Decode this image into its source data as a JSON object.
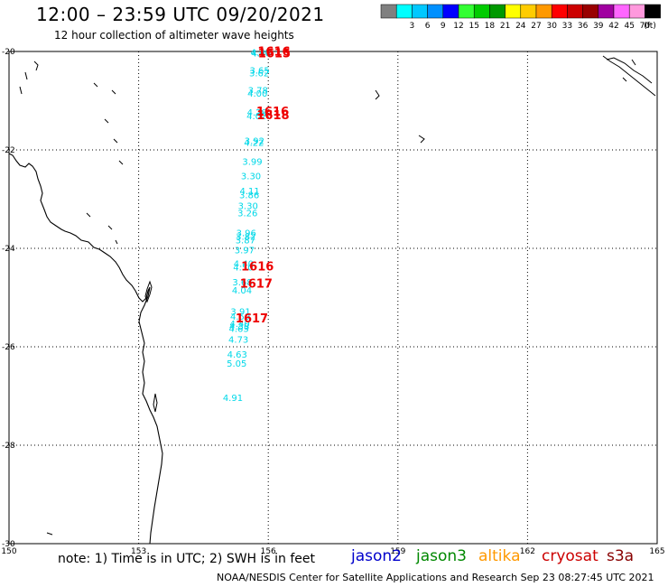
{
  "title": "12:00 – 23:59 UTC 09/20/2021",
  "subtitle": "12 hour collection of altimeter wave heights",
  "scale": {
    "unit": "(ft)",
    "bins": [
      {
        "color": "#808080",
        "label": ""
      },
      {
        "color": "#00ffff",
        "label": "3"
      },
      {
        "color": "#00c8ff",
        "label": "6"
      },
      {
        "color": "#0090ff",
        "label": "9"
      },
      {
        "color": "#0000ff",
        "label": "12"
      },
      {
        "color": "#33ff33",
        "label": "15"
      },
      {
        "color": "#00cc00",
        "label": "18"
      },
      {
        "color": "#009900",
        "label": "21"
      },
      {
        "color": "#ffff00",
        "label": "24"
      },
      {
        "color": "#ffcc00",
        "label": "27"
      },
      {
        "color": "#ff9900",
        "label": "30"
      },
      {
        "color": "#ff0000",
        "label": "33"
      },
      {
        "color": "#cc0000",
        "label": "36"
      },
      {
        "color": "#990000",
        "label": "39"
      },
      {
        "color": "#a000a0",
        "label": "42"
      },
      {
        "color": "#ff66ff",
        "label": "45"
      },
      {
        "color": "#ff99dd",
        "label": "70"
      },
      {
        "color": "#000000",
        "label": ""
      }
    ]
  },
  "map": {
    "lon_range": [
      150,
      165
    ],
    "lat_range": [
      -30,
      -20
    ],
    "lon_ticks": [
      150,
      153,
      156,
      159,
      162,
      165
    ],
    "lat_ticks": [
      -20,
      -22,
      -24,
      -26,
      -28,
      -30
    ],
    "lon_tick_labels": [
      "150",
      "153",
      "156",
      "159",
      "162",
      "165"
    ],
    "lat_tick_labels": [
      "-20",
      "-22",
      "-24",
      "-26",
      "-28",
      "-30"
    ],
    "swh_values": [
      {
        "lon": 155.82,
        "lat": -20.08,
        "v": "4.40"
      },
      {
        "lon": 155.84,
        "lat": -20.1,
        "v": "4.48"
      },
      {
        "lon": 155.8,
        "lat": -20.45,
        "v": "3.65"
      },
      {
        "lon": 155.79,
        "lat": -20.5,
        "v": "3.62"
      },
      {
        "lon": 155.76,
        "lat": -20.85,
        "v": "3.78"
      },
      {
        "lon": 155.75,
        "lat": -20.92,
        "v": "4.00"
      },
      {
        "lon": 155.74,
        "lat": -21.3,
        "v": "4.28"
      },
      {
        "lon": 155.73,
        "lat": -21.38,
        "v": "4.02"
      },
      {
        "lon": 155.68,
        "lat": -21.88,
        "v": "3.92"
      },
      {
        "lon": 155.67,
        "lat": -21.92,
        "v": "4.22"
      },
      {
        "lon": 155.63,
        "lat": -22.3,
        "v": "3.99"
      },
      {
        "lon": 155.6,
        "lat": -22.6,
        "v": "3.30"
      },
      {
        "lon": 155.57,
        "lat": -22.9,
        "v": "4.11"
      },
      {
        "lon": 155.56,
        "lat": -22.98,
        "v": "3.86"
      },
      {
        "lon": 155.53,
        "lat": -23.2,
        "v": "3.30"
      },
      {
        "lon": 155.52,
        "lat": -23.35,
        "v": "3.26"
      },
      {
        "lon": 155.49,
        "lat": -23.75,
        "v": "3.96"
      },
      {
        "lon": 155.48,
        "lat": -23.83,
        "v": "3.82"
      },
      {
        "lon": 155.47,
        "lat": -23.9,
        "v": "3.87"
      },
      {
        "lon": 155.45,
        "lat": -24.1,
        "v": "3.97"
      },
      {
        "lon": 155.43,
        "lat": -24.38,
        "v": "4.40"
      },
      {
        "lon": 155.42,
        "lat": -24.45,
        "v": "4.50"
      },
      {
        "lon": 155.4,
        "lat": -24.75,
        "v": "3.68"
      },
      {
        "lon": 155.39,
        "lat": -24.92,
        "v": "4.04"
      },
      {
        "lon": 155.36,
        "lat": -25.35,
        "v": "3.91"
      },
      {
        "lon": 155.35,
        "lat": -25.45,
        "v": "4.59"
      },
      {
        "lon": 155.34,
        "lat": -25.6,
        "v": "4.40"
      },
      {
        "lon": 155.33,
        "lat": -25.65,
        "v": "4.38"
      },
      {
        "lon": 155.32,
        "lat": -25.7,
        "v": "4.63"
      },
      {
        "lon": 155.31,
        "lat": -25.92,
        "v": "4.73"
      },
      {
        "lon": 155.28,
        "lat": -26.22,
        "v": "4.63"
      },
      {
        "lon": 155.27,
        "lat": -26.4,
        "v": "5.05"
      },
      {
        "lon": 155.18,
        "lat": -27.1,
        "v": "4.91"
      }
    ],
    "rev_labels": [
      {
        "lon": 156.13,
        "lat": -20.08,
        "v": "1616"
      },
      {
        "lon": 156.14,
        "lat": -20.12,
        "v": "1615"
      },
      {
        "lon": 156.1,
        "lat": -21.3,
        "v": "1616"
      },
      {
        "lon": 156.11,
        "lat": -21.38,
        "v": "1618"
      },
      {
        "lon": 155.75,
        "lat": -24.45,
        "v": "1616"
      },
      {
        "lon": 155.72,
        "lat": -24.8,
        "v": "1617"
      },
      {
        "lon": 155.62,
        "lat": -25.5,
        "v": "1617"
      }
    ]
  },
  "note": "note: 1) Time is in UTC; 2) SWH is in feet",
  "missions": {
    "jason2": "jason2",
    "jason3": "jason3",
    "altika": "altika",
    "cryosat": "cryosat",
    "s3a": "s3a"
  },
  "credit": "NOAA/NESDIS Center for Satellite Applications and Research   Sep 23 08:27:45 UTC 2021"
}
